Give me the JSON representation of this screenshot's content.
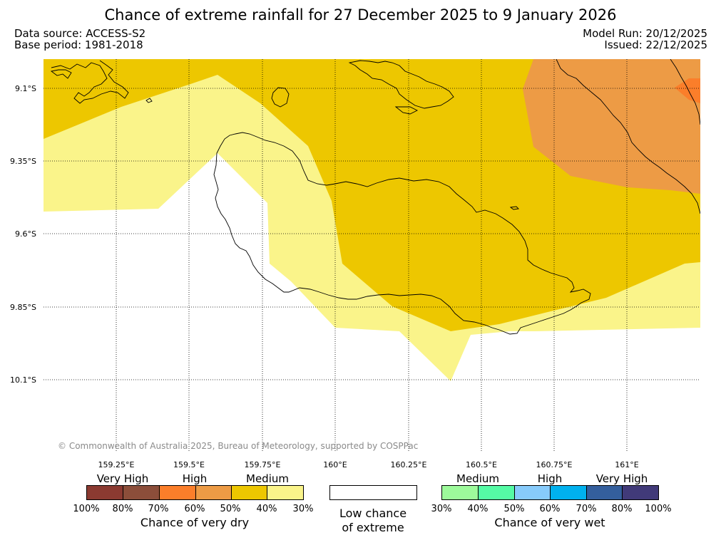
{
  "header": {
    "title": "Chance of extreme rainfall for 27 December 2025 to 9 January 2026",
    "data_source": "Data source: ACCESS-S2",
    "base_period": "Base period: 1981-2018",
    "model_run": "Model Run: 20/12/2025",
    "issued": "Issued: 22/12/2025"
  },
  "map": {
    "lat_labels": [
      "9.1°S",
      "9.35°S",
      "9.6°S",
      "9.85°S",
      "10.1°S"
    ],
    "lon_labels": [
      "159.25°E",
      "159.5°E",
      "159.75°E",
      "160°E",
      "160.25°E",
      "160.5°E",
      "160.75°E",
      "161°E"
    ],
    "copyright": "© Commonwealth of Australia 2025, Bureau of Meteorology, supported by COSPPac",
    "colors": {
      "medium_dry": "#edc700",
      "low_dry": "#faf48a",
      "high_dry_60": "#ed9b45",
      "high_dry_70": "#fb7e2a",
      "coast": "#000000",
      "grid": "#000000"
    }
  },
  "legend": {
    "dry": {
      "categories": [
        "Very High",
        "High",
        "Medium"
      ],
      "percents": [
        "100%",
        "80%",
        "70%",
        "60%",
        "50%",
        "40%",
        "30%"
      ],
      "colors": [
        "#8b3a31",
        "#8c4e3a",
        "#fb7e2a",
        "#ed9b45",
        "#edc700",
        "#faf48a"
      ],
      "title": "Chance of very dry"
    },
    "low": {
      "line1": "Low chance",
      "line2": "of extreme",
      "color": "#ffffff"
    },
    "wet": {
      "categories": [
        "Medium",
        "High",
        "Very High"
      ],
      "percents": [
        "30%",
        "40%",
        "50%",
        "60%",
        "70%",
        "80%",
        "100%"
      ],
      "colors": [
        "#9dfa9b",
        "#55fba5",
        "#87cbfb",
        "#00b1ee",
        "#345f9d",
        "#413a79"
      ],
      "title": "Chance of very wet"
    }
  }
}
